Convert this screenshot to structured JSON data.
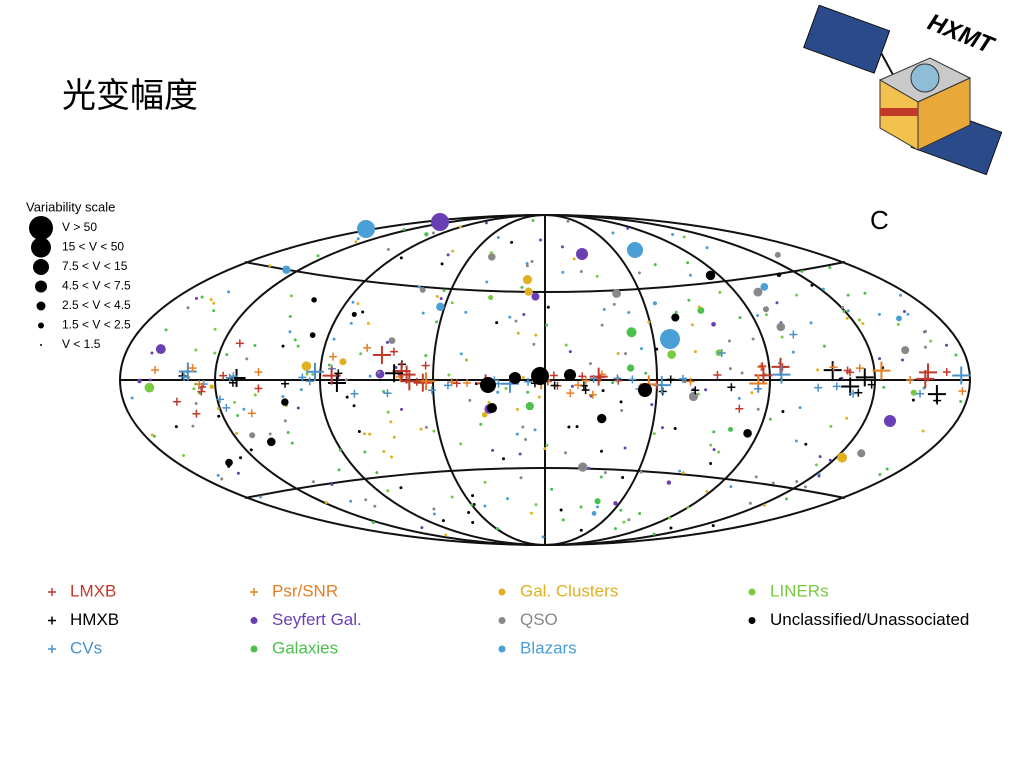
{
  "slide": {
    "title": "光变幅度",
    "logo_text": "HXMT",
    "panel_label": "C"
  },
  "scale_legend": {
    "title": "Variability scale",
    "items": [
      "V > 50",
      "15 < V < 50",
      "7.5 < V < 15",
      "4.5 < V < 7.5",
      "2.5 < V < 4.5",
      "1.5 < V < 2.5",
      "V < 1.5"
    ]
  },
  "classes": [
    {
      "name": "LMXB",
      "marker": "cross",
      "color": "#c0392b"
    },
    {
      "name": "Psr/SNR",
      "marker": "cross",
      "color": "#e67e22"
    },
    {
      "name": "Gal. Clusters",
      "marker": "dot",
      "color": "#e0b020"
    },
    {
      "name": "LINERs",
      "marker": "dot",
      "color": "#7ac943"
    },
    {
      "name": "HMXB",
      "marker": "cross",
      "color": "#000000"
    },
    {
      "name": "Seyfert Gal.",
      "marker": "dot",
      "color": "#6a3fb5"
    },
    {
      "name": "QSO",
      "marker": "dot",
      "color": "#888888"
    },
    {
      "name": "Unclassified/Unassociated",
      "marker": "dot",
      "color": "#000000"
    },
    {
      "name": "CVs",
      "marker": "cross",
      "color": "#4a90c8"
    },
    {
      "name": "Galaxies",
      "marker": "dot",
      "color": "#4cc04c"
    },
    {
      "name": "Blazars",
      "marker": "dot",
      "color": "#4a9fd6"
    }
  ]
}
